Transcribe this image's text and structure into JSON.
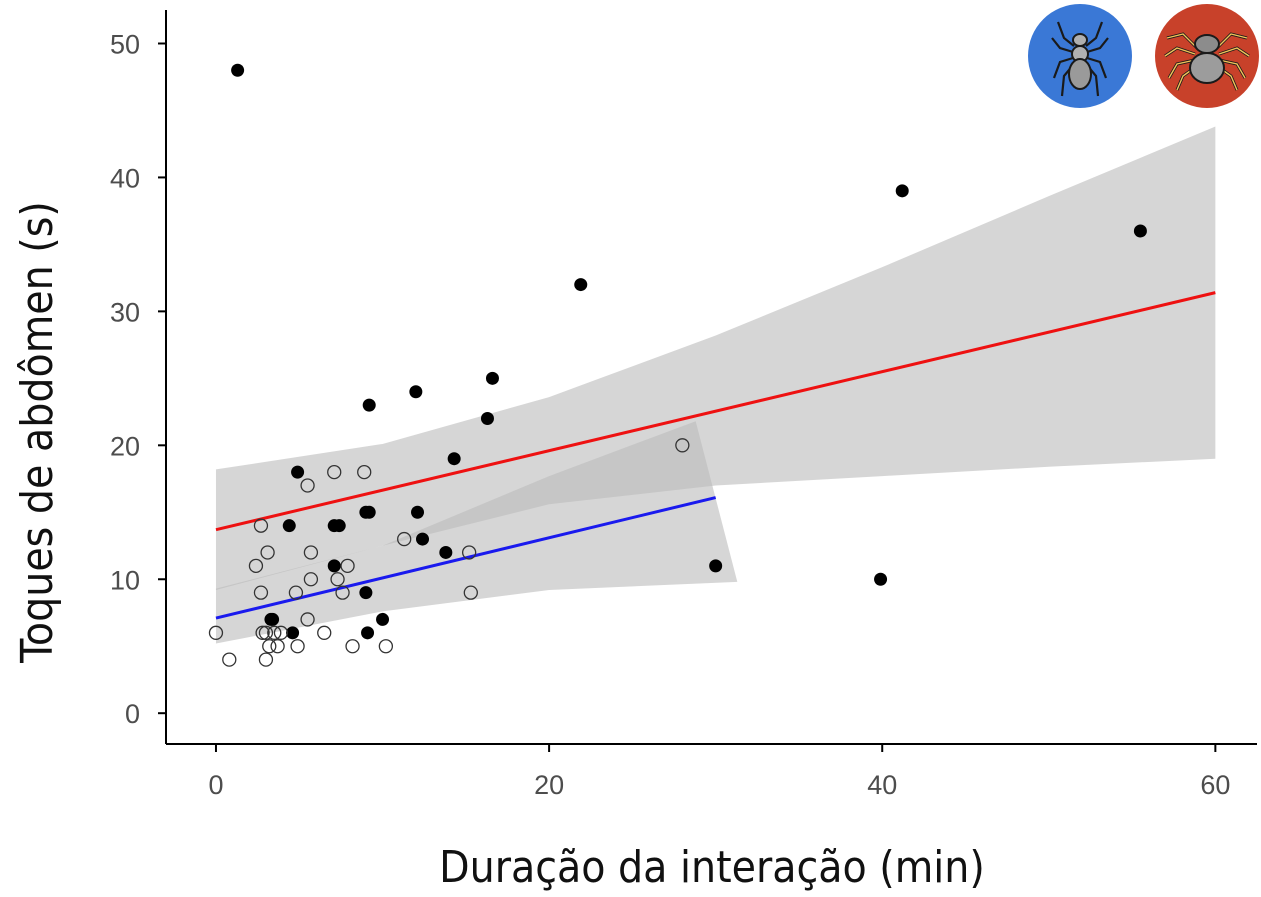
{
  "chart_data": {
    "type": "scatter",
    "xlabel": "Duração da interação (min)",
    "ylabel": "Toques de abdômen (s)",
    "xlim": [
      -3,
      62.5
    ],
    "ylim": [
      -2.3,
      52.5
    ],
    "x_ticks": [
      0,
      20,
      40,
      60
    ],
    "y_ticks": [
      0,
      10,
      20,
      30,
      40,
      50
    ],
    "grid": false,
    "legend": "top-right",
    "legend_icons": [
      "spider-blue-icon",
      "spider-red-icon"
    ],
    "colors": {
      "red_line": "#ee1111",
      "blue_line": "#1a1aee",
      "ribbon": "#bdbdbd",
      "filled_point": "#000000",
      "open_point_stroke": "#333333",
      "legend_blue": "#3a78d6",
      "legend_red": "#c8412a"
    },
    "series": [
      {
        "marker": "filled",
        "fit_color": "red",
        "points": [
          [
            1.3,
            48
          ],
          [
            41.2,
            39
          ],
          [
            55.5,
            36
          ],
          [
            21.9,
            32
          ],
          [
            12,
            24
          ],
          [
            9.2,
            23
          ],
          [
            16.6,
            25
          ],
          [
            16.3,
            22
          ],
          [
            14.3,
            19
          ],
          [
            4.9,
            18
          ],
          [
            4.4,
            14
          ],
          [
            7.4,
            14
          ],
          [
            7.1,
            14
          ],
          [
            9.2,
            15
          ],
          [
            9,
            15
          ],
          [
            12.1,
            15
          ],
          [
            12.4,
            13
          ],
          [
            13.8,
            12
          ],
          [
            7.1,
            11
          ],
          [
            30,
            11
          ],
          [
            39.9,
            10
          ],
          [
            9,
            9
          ],
          [
            3.4,
            7
          ],
          [
            3.3,
            7
          ],
          [
            10,
            7
          ],
          [
            4.6,
            6
          ],
          [
            9.1,
            6
          ]
        ],
        "fit": {
          "x": [
            0,
            60
          ],
          "y": [
            13.7,
            31.4
          ]
        },
        "ci": {
          "x": [
            0,
            10,
            20,
            30,
            40,
            50,
            60
          ],
          "upper": [
            18.2,
            20.1,
            23.6,
            28.2,
            33.3,
            38.6,
            43.8
          ],
          "lower": [
            9.2,
            12.5,
            15.6,
            17.0,
            17.7,
            18.4,
            19.0
          ]
        }
      },
      {
        "marker": "open",
        "fit_color": "blue",
        "points": [
          [
            0,
            6
          ],
          [
            0.8,
            4
          ],
          [
            2.4,
            11
          ],
          [
            2.7,
            9
          ],
          [
            2.7,
            14
          ],
          [
            3.1,
            12
          ],
          [
            2.8,
            6
          ],
          [
            3.0,
            6
          ],
          [
            3.0,
            4
          ],
          [
            3.2,
            5
          ],
          [
            3.5,
            6
          ],
          [
            3.7,
            5
          ],
          [
            3.9,
            6
          ],
          [
            4.8,
            9
          ],
          [
            4.9,
            5
          ],
          [
            5.5,
            17
          ],
          [
            5.5,
            7
          ],
          [
            5.7,
            12
          ],
          [
            5.7,
            10
          ],
          [
            6.5,
            6
          ],
          [
            7.1,
            18
          ],
          [
            7.3,
            10
          ],
          [
            7.6,
            9
          ],
          [
            7.9,
            11
          ],
          [
            8.2,
            5
          ],
          [
            8.9,
            18
          ],
          [
            10.2,
            5
          ],
          [
            11.3,
            13
          ],
          [
            15.2,
            12
          ],
          [
            15.3,
            9
          ],
          [
            28,
            20
          ]
        ],
        "fit": {
          "x": [
            0,
            30
          ],
          "y": [
            7.1,
            16.1
          ]
        },
        "ci": {
          "polygon": [
            [
              0,
              9.3
            ],
            [
              10,
              12.5
            ],
            [
              20,
              17.7
            ],
            [
              28.8,
              21.8
            ],
            [
              31.3,
              9.8
            ],
            [
              20,
              9.2
            ],
            [
              10,
              7.6
            ],
            [
              0,
              5.2
            ]
          ]
        }
      }
    ]
  }
}
